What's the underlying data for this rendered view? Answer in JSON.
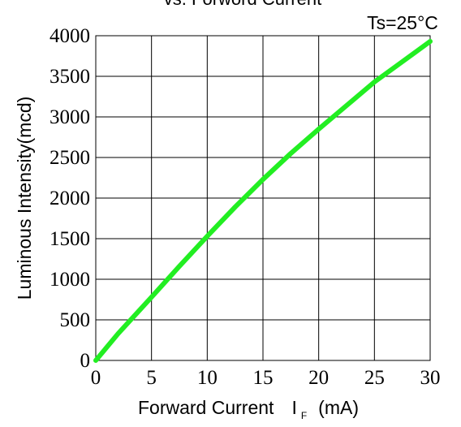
{
  "chart_data": {
    "type": "line",
    "title": "vs. Forword Current",
    "condition": "Ts=25°C",
    "xlabel": "Forward Current",
    "xlabel_symbol": "I",
    "xlabel_subscript": "F",
    "xlabel_unit": "(mA)",
    "ylabel": "Luminous Intensity(mcd)",
    "xlim": [
      0,
      30
    ],
    "ylim": [
      0,
      4000
    ],
    "xticks": [
      "0",
      "5",
      "10",
      "15",
      "20",
      "25",
      "30"
    ],
    "yticks": [
      "0",
      "500",
      "1000",
      "1500",
      "2000",
      "2500",
      "3000",
      "3500",
      "4000"
    ],
    "grid": true,
    "series": [
      {
        "color": "#22ee22",
        "x": [
          0,
          2,
          5,
          7.5,
          10,
          12.5,
          15,
          17.5,
          20,
          22.5,
          25,
          27.5,
          30
        ],
        "y": [
          0,
          330,
          780,
          1160,
          1530,
          1890,
          2230,
          2550,
          2850,
          3140,
          3430,
          3680,
          3930
        ]
      }
    ]
  }
}
